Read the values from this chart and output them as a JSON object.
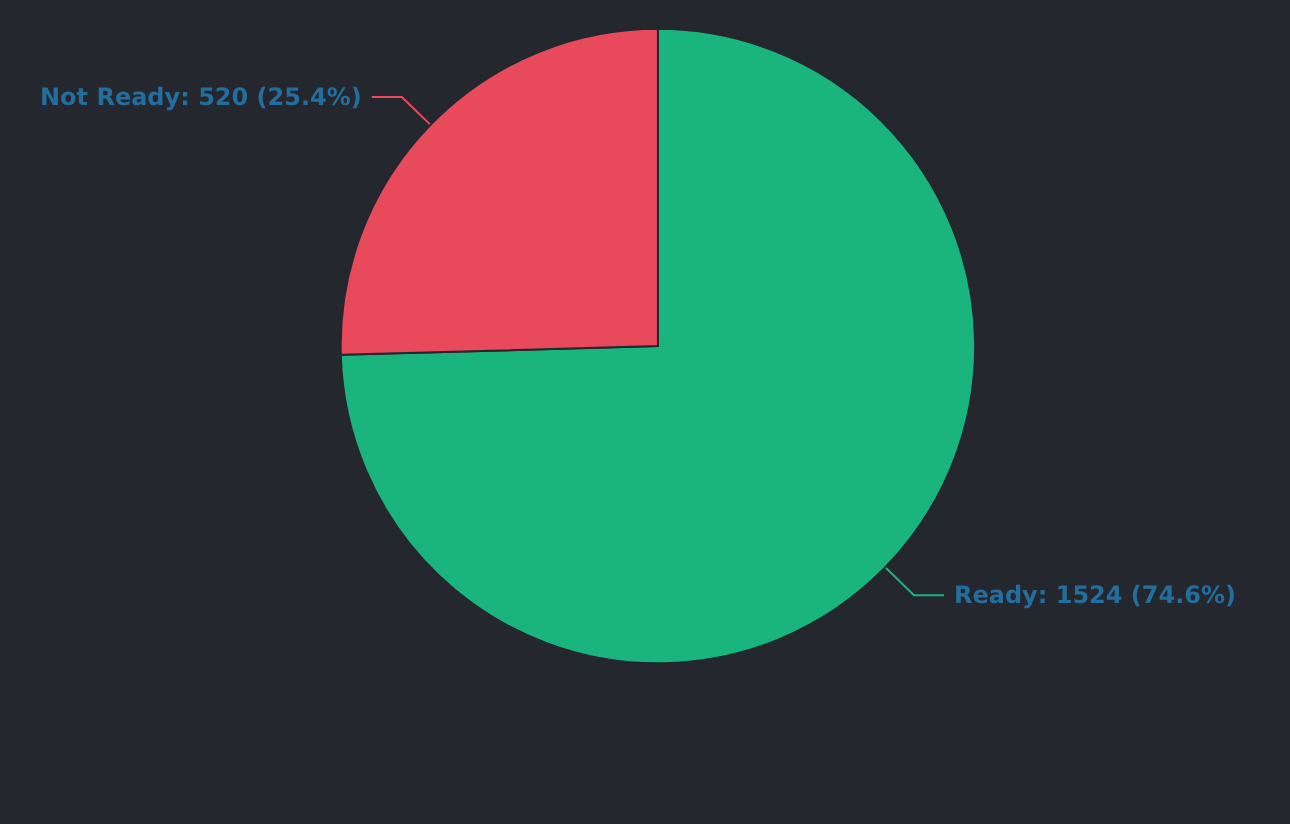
{
  "chart_data": {
    "type": "pie",
    "categories": [
      "Ready",
      "Not Ready"
    ],
    "values": [
      1524,
      520
    ],
    "colors": [
      "#1ab47f",
      "#e84a5b"
    ],
    "value_labels": [
      "1524 (74.6%)",
      "520 (25.4%)"
    ],
    "legend": false
  }
}
